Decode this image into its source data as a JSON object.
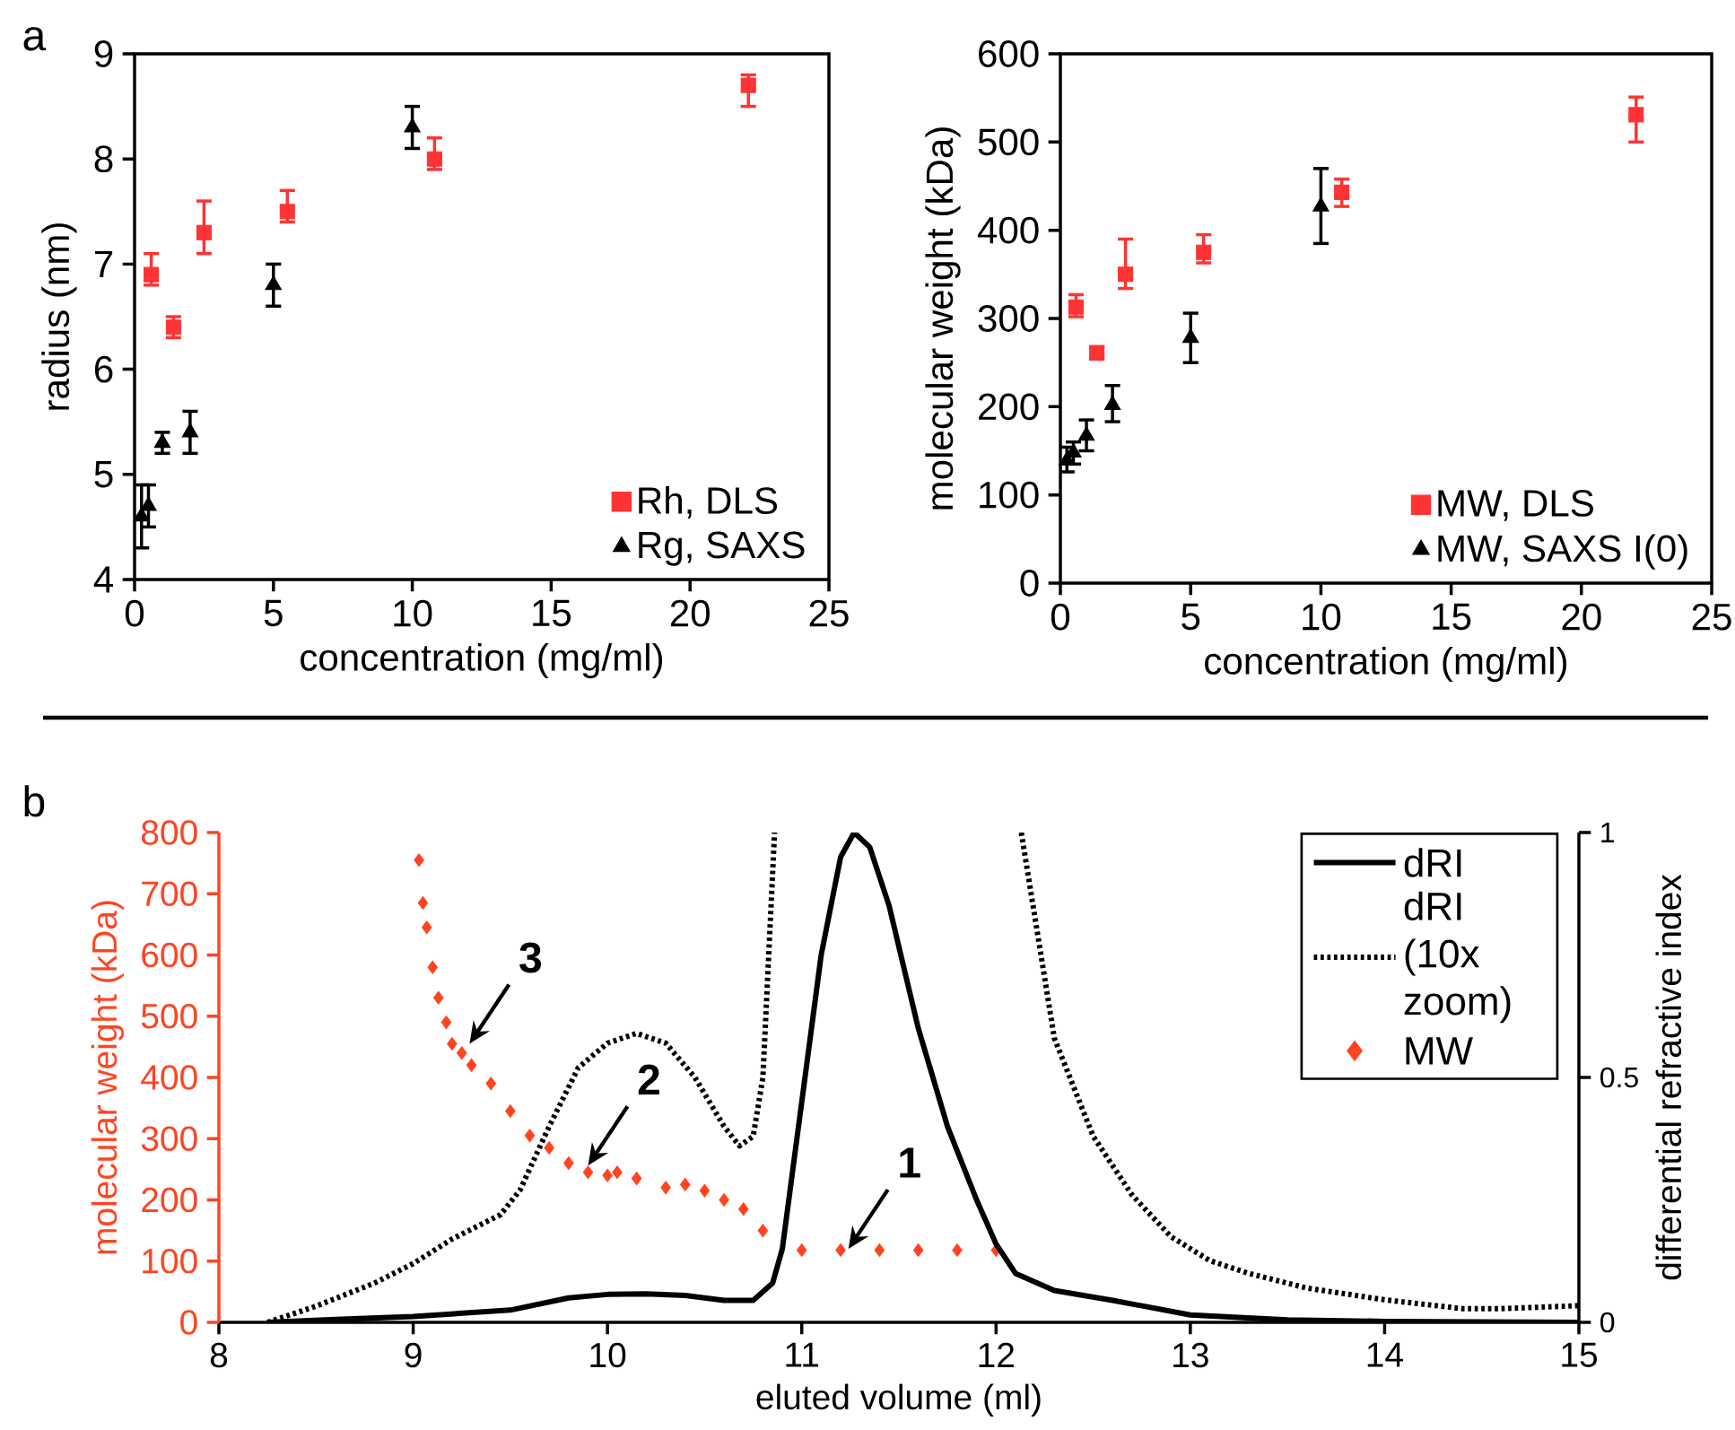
{
  "chart_data": [
    {
      "type": "scatter",
      "ylabel": "radius (nm)",
      "xlabel": "concentration (mg/ml)",
      "xlim": [
        0,
        25
      ],
      "ylim": [
        4,
        9
      ],
      "xticks": [
        0,
        5,
        10,
        15,
        20,
        25
      ],
      "yticks": [
        4,
        5,
        6,
        7,
        8,
        9
      ],
      "legend": "bottom right",
      "annotations": [
        "a"
      ],
      "series": [
        {
          "name": "Rh, DLS",
          "color": "#ff3333",
          "marker": "square",
          "x": [
            0.6,
            1.4,
            2.5,
            5.5,
            10.8,
            22.1
          ],
          "values": [
            6.9,
            6.4,
            7.3,
            7.5,
            8.0,
            8.7
          ],
          "errors": [
            [
              6.8,
              7.1
            ],
            [
              6.3,
              6.5
            ],
            [
              7.1,
              7.6
            ],
            [
              7.4,
              7.7
            ],
            [
              7.9,
              8.2
            ],
            [
              8.5,
              8.8
            ]
          ]
        },
        {
          "name": "Rg, SAXS",
          "color": "#000000",
          "marker": "triangle",
          "x": [
            0.25,
            0.5,
            1,
            2,
            5,
            10
          ],
          "values": [
            4.6,
            4.7,
            5.3,
            5.4,
            6.8,
            8.3
          ],
          "errors": [
            [
              4.3,
              4.9
            ],
            [
              4.5,
              4.9
            ],
            [
              5.2,
              5.4
            ],
            [
              5.2,
              5.6
            ],
            [
              6.6,
              7.0
            ],
            [
              8.1,
              8.5
            ]
          ]
        }
      ]
    },
    {
      "type": "scatter",
      "ylabel": "molecular weight (kDa)",
      "xlabel": "concentration (mg/ml)",
      "xlim": [
        0,
        25
      ],
      "ylim": [
        0,
        600
      ],
      "xticks": [
        0,
        5,
        10,
        15,
        20,
        25
      ],
      "yticks": [
        0,
        100,
        200,
        300,
        400,
        500,
        600
      ],
      "legend": "bottom right",
      "series": [
        {
          "name": "MW, DLS",
          "color": "#ff3333",
          "marker": "square",
          "x": [
            0.6,
            1.4,
            2.5,
            5.5,
            10.8,
            22.1
          ],
          "values": [
            313,
            261,
            350,
            375,
            443,
            531
          ],
          "errors": [
            [
              302,
              327
            ],
            [
              256,
              268
            ],
            [
              334,
              390
            ],
            [
              363,
              395
            ],
            [
              427,
              458
            ],
            [
              500,
              551
            ]
          ]
        },
        {
          "name": "MW, SAXS I(0)",
          "color": "#000000",
          "marker": "triangle",
          "x": [
            0.25,
            0.5,
            1,
            2,
            5,
            10
          ],
          "values": [
            139,
            148,
            167,
            202,
            278,
            427
          ],
          "errors": [
            [
              126,
              154
            ],
            [
              135,
              160
            ],
            [
              150,
              185
            ],
            [
              183,
              224
            ],
            [
              250,
              306
            ],
            [
              385,
              470
            ]
          ]
        }
      ]
    },
    {
      "type": "line",
      "xlabel": "eluted volume (ml)",
      "ylabel": "molecular weight (kDa)",
      "y2label": "differential refractive index",
      "xlim": [
        8,
        15
      ],
      "ylim": [
        0,
        800
      ],
      "y2lim": [
        0,
        1
      ],
      "xticks": [
        8,
        9,
        10,
        11,
        12,
        13,
        14,
        15
      ],
      "yticks": [
        0,
        100,
        200,
        300,
        400,
        500,
        600,
        700,
        800
      ],
      "y2ticks": [
        0,
        0.5,
        1
      ],
      "legend": "top right",
      "annotations": [
        "b",
        {
          "text": "1",
          "x": 11.24,
          "y": 120
        },
        {
          "text": "2",
          "x": 9.9,
          "y": 256
        },
        {
          "text": "3",
          "x": 9.29,
          "y": 455
        }
      ],
      "series": [
        {
          "name": "dRI",
          "color": "#000000",
          "axis": "y2",
          "line_style": "solid",
          "marker": "none",
          "x": [
            8.25,
            8.6,
            9.0,
            9.5,
            9.8,
            10.0,
            10.2,
            10.4,
            10.6,
            10.75,
            10.85,
            10.9,
            10.95,
            11.0,
            11.1,
            11.2,
            11.27,
            11.35,
            11.45,
            11.6,
            11.75,
            11.9,
            12.0,
            12.1,
            12.3,
            12.6,
            13.0,
            13.5,
            14.0,
            15.0
          ],
          "values": [
            0,
            0.006,
            0.012,
            0.025,
            0.05,
            0.057,
            0.058,
            0.055,
            0.045,
            0.045,
            0.08,
            0.15,
            0.3,
            0.45,
            0.75,
            0.95,
            1.0,
            0.97,
            0.85,
            0.6,
            0.4,
            0.25,
            0.16,
            0.1,
            0.065,
            0.045,
            0.015,
            0.005,
            0.002,
            0
          ]
        },
        {
          "name": "dRI (10x zoom)",
          "color": "#000000",
          "axis": "y2",
          "line_style": "dotted",
          "marker": "none",
          "x": [
            8.25,
            8.5,
            8.8,
            9.0,
            9.2,
            9.45,
            9.55,
            9.7,
            9.85,
            10.0,
            10.15,
            10.3,
            10.45,
            10.6,
            10.68,
            10.75,
            10.8,
            10.86,
            11.5,
            12.13,
            12.3,
            12.5,
            12.7,
            12.9,
            13.1,
            13.3,
            13.6,
            14.0,
            14.4,
            14.6,
            15.0
          ],
          "values": [
            0,
            0.033,
            0.08,
            0.12,
            0.17,
            0.22,
            0.27,
            0.4,
            0.52,
            0.57,
            0.59,
            0.57,
            0.5,
            0.4,
            0.36,
            0.38,
            0.5,
            1.0,
            null,
            1.0,
            0.58,
            0.38,
            0.26,
            0.175,
            0.126,
            0.1,
            0.07,
            0.046,
            0.028,
            0.028,
            0.034
          ]
        },
        {
          "name": "MW",
          "type": "scatter",
          "color": "#ff4422",
          "axis": "y",
          "marker": "diamond",
          "x": [
            9.03,
            9.05,
            9.07,
            9.1,
            9.13,
            9.17,
            9.2,
            9.25,
            9.3,
            9.4,
            9.5,
            9.6,
            9.7,
            9.8,
            9.9,
            10.0,
            10.05,
            10.15,
            10.3,
            10.4,
            10.5,
            10.6,
            10.7,
            10.8,
            11.0,
            11.2,
            11.4,
            11.6,
            11.8,
            12.0
          ],
          "values": [
            755,
            685,
            645,
            580,
            530,
            490,
            455,
            440,
            420,
            390,
            345,
            305,
            285,
            260,
            245,
            240,
            245,
            235,
            220,
            225,
            215,
            200,
            185,
            150,
            118,
            118,
            118,
            118,
            118,
            118
          ]
        }
      ]
    }
  ]
}
